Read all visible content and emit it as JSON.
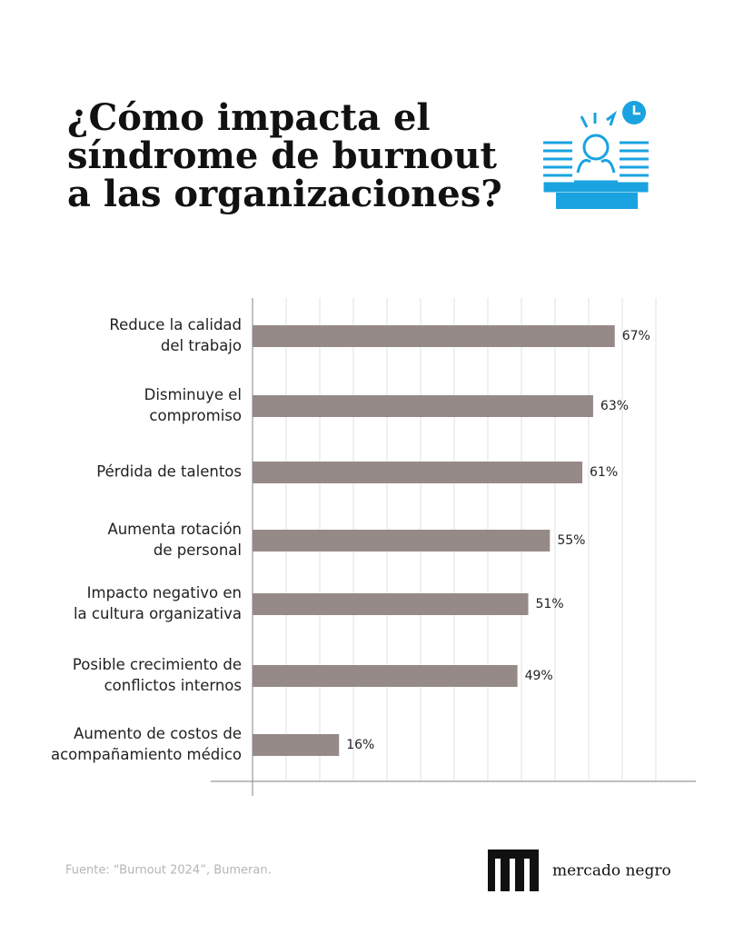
{
  "chart_data": {
    "type": "bar",
    "orientation": "horizontal",
    "title": [
      "¿Cómo impacta el",
      "síndrome de burnout",
      "a las organizaciones?"
    ],
    "categories": [
      [
        "Reduce la calidad",
        "del trabajo"
      ],
      [
        "Disminuye el",
        "compromiso"
      ],
      [
        "Pérdida de talentos"
      ],
      [
        "Aumenta rotación",
        "de personal"
      ],
      [
        "Impacto negativo en",
        "la cultura organizativa"
      ],
      [
        "Posible crecimiento de",
        "conflictos internos"
      ],
      [
        "Aumento de costos de",
        "acompañamiento médico"
      ]
    ],
    "values": [
      67,
      63,
      61,
      55,
      51,
      49,
      16
    ],
    "value_labels": [
      "67%",
      "63%",
      "61%",
      "55%",
      "51%",
      "49%",
      "16%"
    ],
    "color": "#968a89",
    "xlim": [
      0,
      82
    ],
    "grid": true,
    "source": "Fuente: “Burnout 2024”, Bumeran.",
    "brand": "mercado negro"
  }
}
